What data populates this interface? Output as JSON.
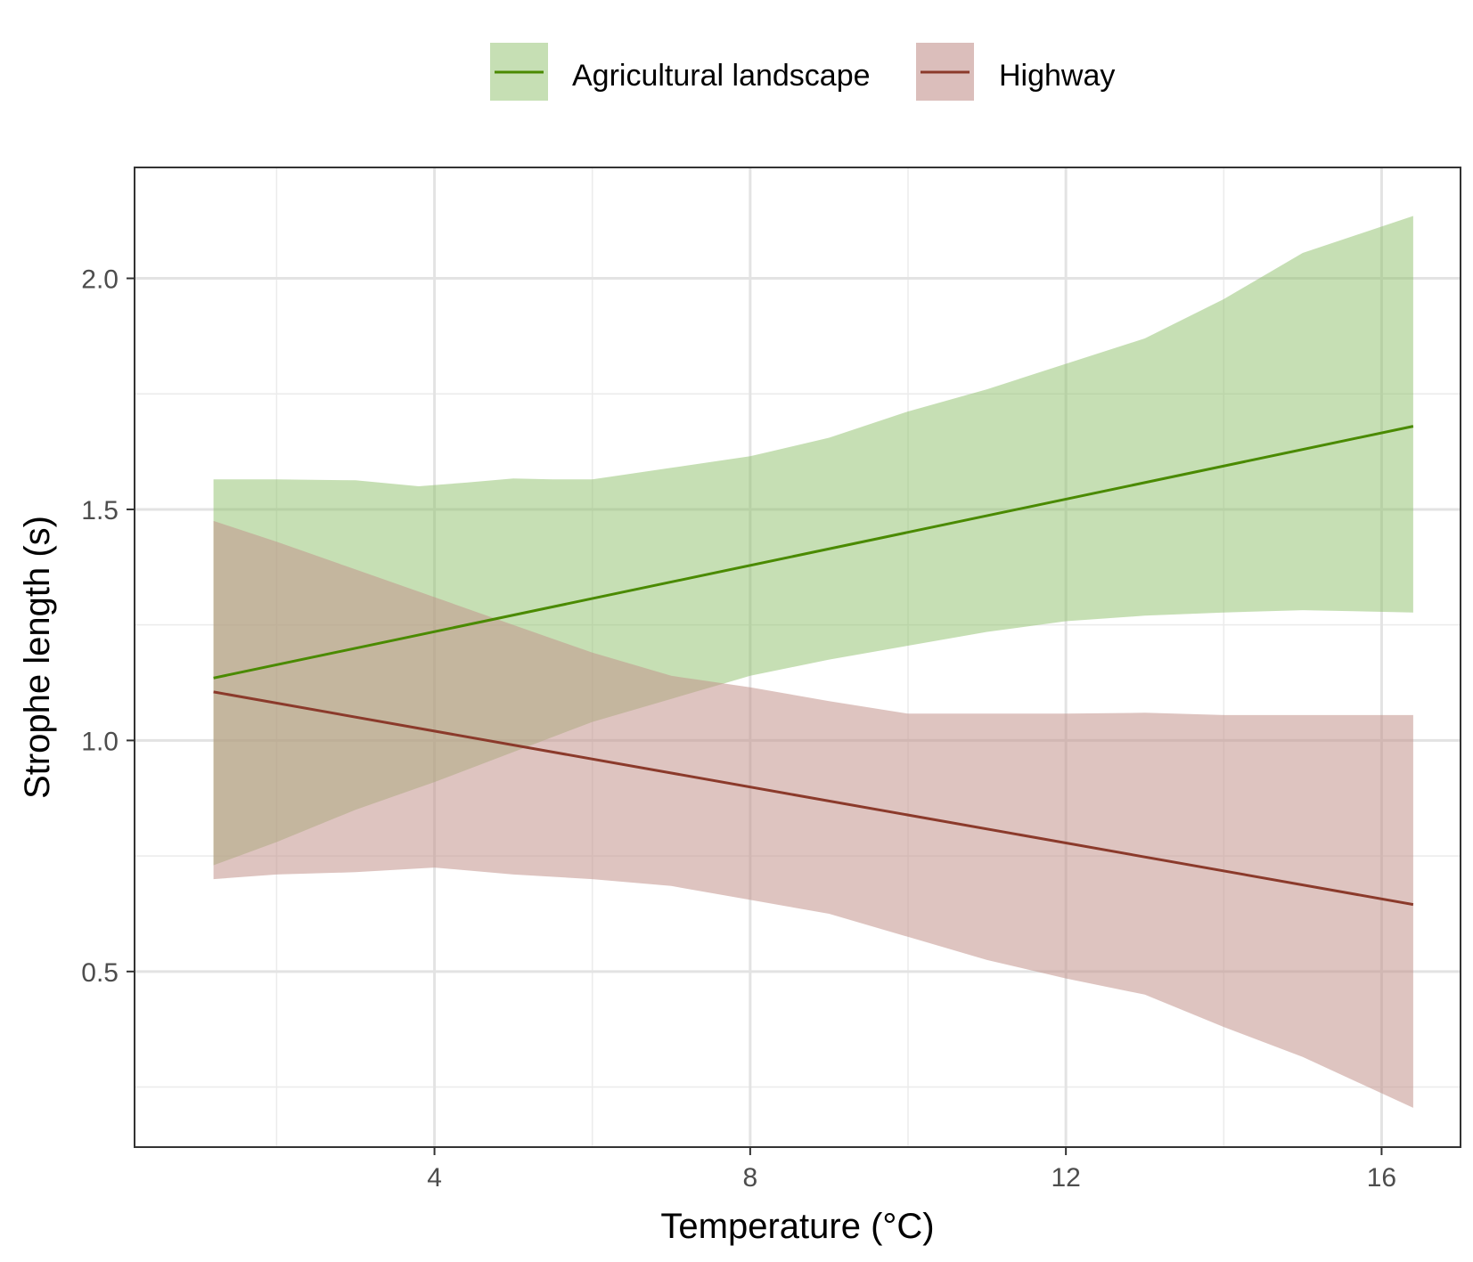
{
  "chart_data": {
    "type": "line",
    "xlabel": "Temperature (°C)",
    "ylabel": "Strophe length (s)",
    "xlim": [
      0.2,
      17.0
    ],
    "ylim": [
      0.12,
      2.24
    ],
    "x_ticks": [
      4,
      8,
      12,
      16
    ],
    "x_tick_labels": [
      "4",
      "8",
      "12",
      "16"
    ],
    "x_minor_gridlines": [
      2,
      6,
      10,
      14
    ],
    "y_ticks": [
      0.5,
      1.0,
      1.5,
      2.0
    ],
    "y_tick_labels": [
      "0.5",
      "1.0",
      "1.5",
      "2.0"
    ],
    "y_minor_gridlines": [
      0.25,
      0.75,
      1.25,
      1.75
    ],
    "grid": true,
    "legend_position": "top",
    "series": [
      {
        "name": "Agricultural landscape",
        "color": "#4a8a00",
        "band_color": "#8dbf6a",
        "line": {
          "x": [
            1.2,
            16.4
          ],
          "y": [
            1.135,
            1.68
          ]
        },
        "band_upper": {
          "x": [
            1.2,
            2.0,
            3.0,
            3.8,
            4.4,
            5.0,
            5.5,
            6.0,
            7.0,
            8.0,
            9.0,
            10.0,
            11.0,
            12.0,
            13.0,
            14.0,
            15.0,
            16.4
          ],
          "y": [
            1.565,
            1.565,
            1.563,
            1.55,
            1.558,
            1.567,
            1.565,
            1.565,
            1.59,
            1.615,
            1.655,
            1.712,
            1.76,
            1.815,
            1.87,
            1.955,
            2.055,
            2.135
          ]
        },
        "band_lower": {
          "x": [
            1.2,
            2.0,
            3.0,
            4.0,
            5.0,
            6.0,
            7.0,
            8.0,
            9.0,
            10.0,
            11.0,
            12.0,
            13.0,
            14.0,
            15.0,
            16.4
          ],
          "y": [
            0.73,
            0.78,
            0.85,
            0.91,
            0.975,
            1.04,
            1.09,
            1.14,
            1.175,
            1.205,
            1.235,
            1.258,
            1.27,
            1.277,
            1.282,
            1.277
          ]
        }
      },
      {
        "name": "Highway",
        "color": "#8b3a2b",
        "band_color": "#c3938d",
        "line": {
          "x": [
            1.2,
            16.4
          ],
          "y": [
            1.105,
            0.645
          ]
        },
        "band_upper": {
          "x": [
            1.2,
            2.0,
            3.0,
            4.0,
            5.0,
            6.0,
            7.0,
            8.0,
            9.0,
            10.0,
            11.0,
            12.0,
            13.0,
            14.0,
            15.0,
            16.4
          ],
          "y": [
            1.475,
            1.43,
            1.37,
            1.31,
            1.25,
            1.19,
            1.14,
            1.115,
            1.085,
            1.058,
            1.058,
            1.058,
            1.06,
            1.055,
            1.055,
            1.055
          ]
        },
        "band_lower": {
          "x": [
            1.2,
            2.0,
            3.0,
            4.0,
            5.0,
            6.0,
            7.0,
            8.0,
            9.0,
            10.0,
            11.0,
            12.0,
            13.0,
            14.0,
            15.0,
            16.4
          ],
          "y": [
            0.7,
            0.71,
            0.715,
            0.725,
            0.71,
            0.7,
            0.685,
            0.655,
            0.625,
            0.575,
            0.525,
            0.485,
            0.45,
            0.38,
            0.315,
            0.205
          ]
        }
      }
    ]
  }
}
